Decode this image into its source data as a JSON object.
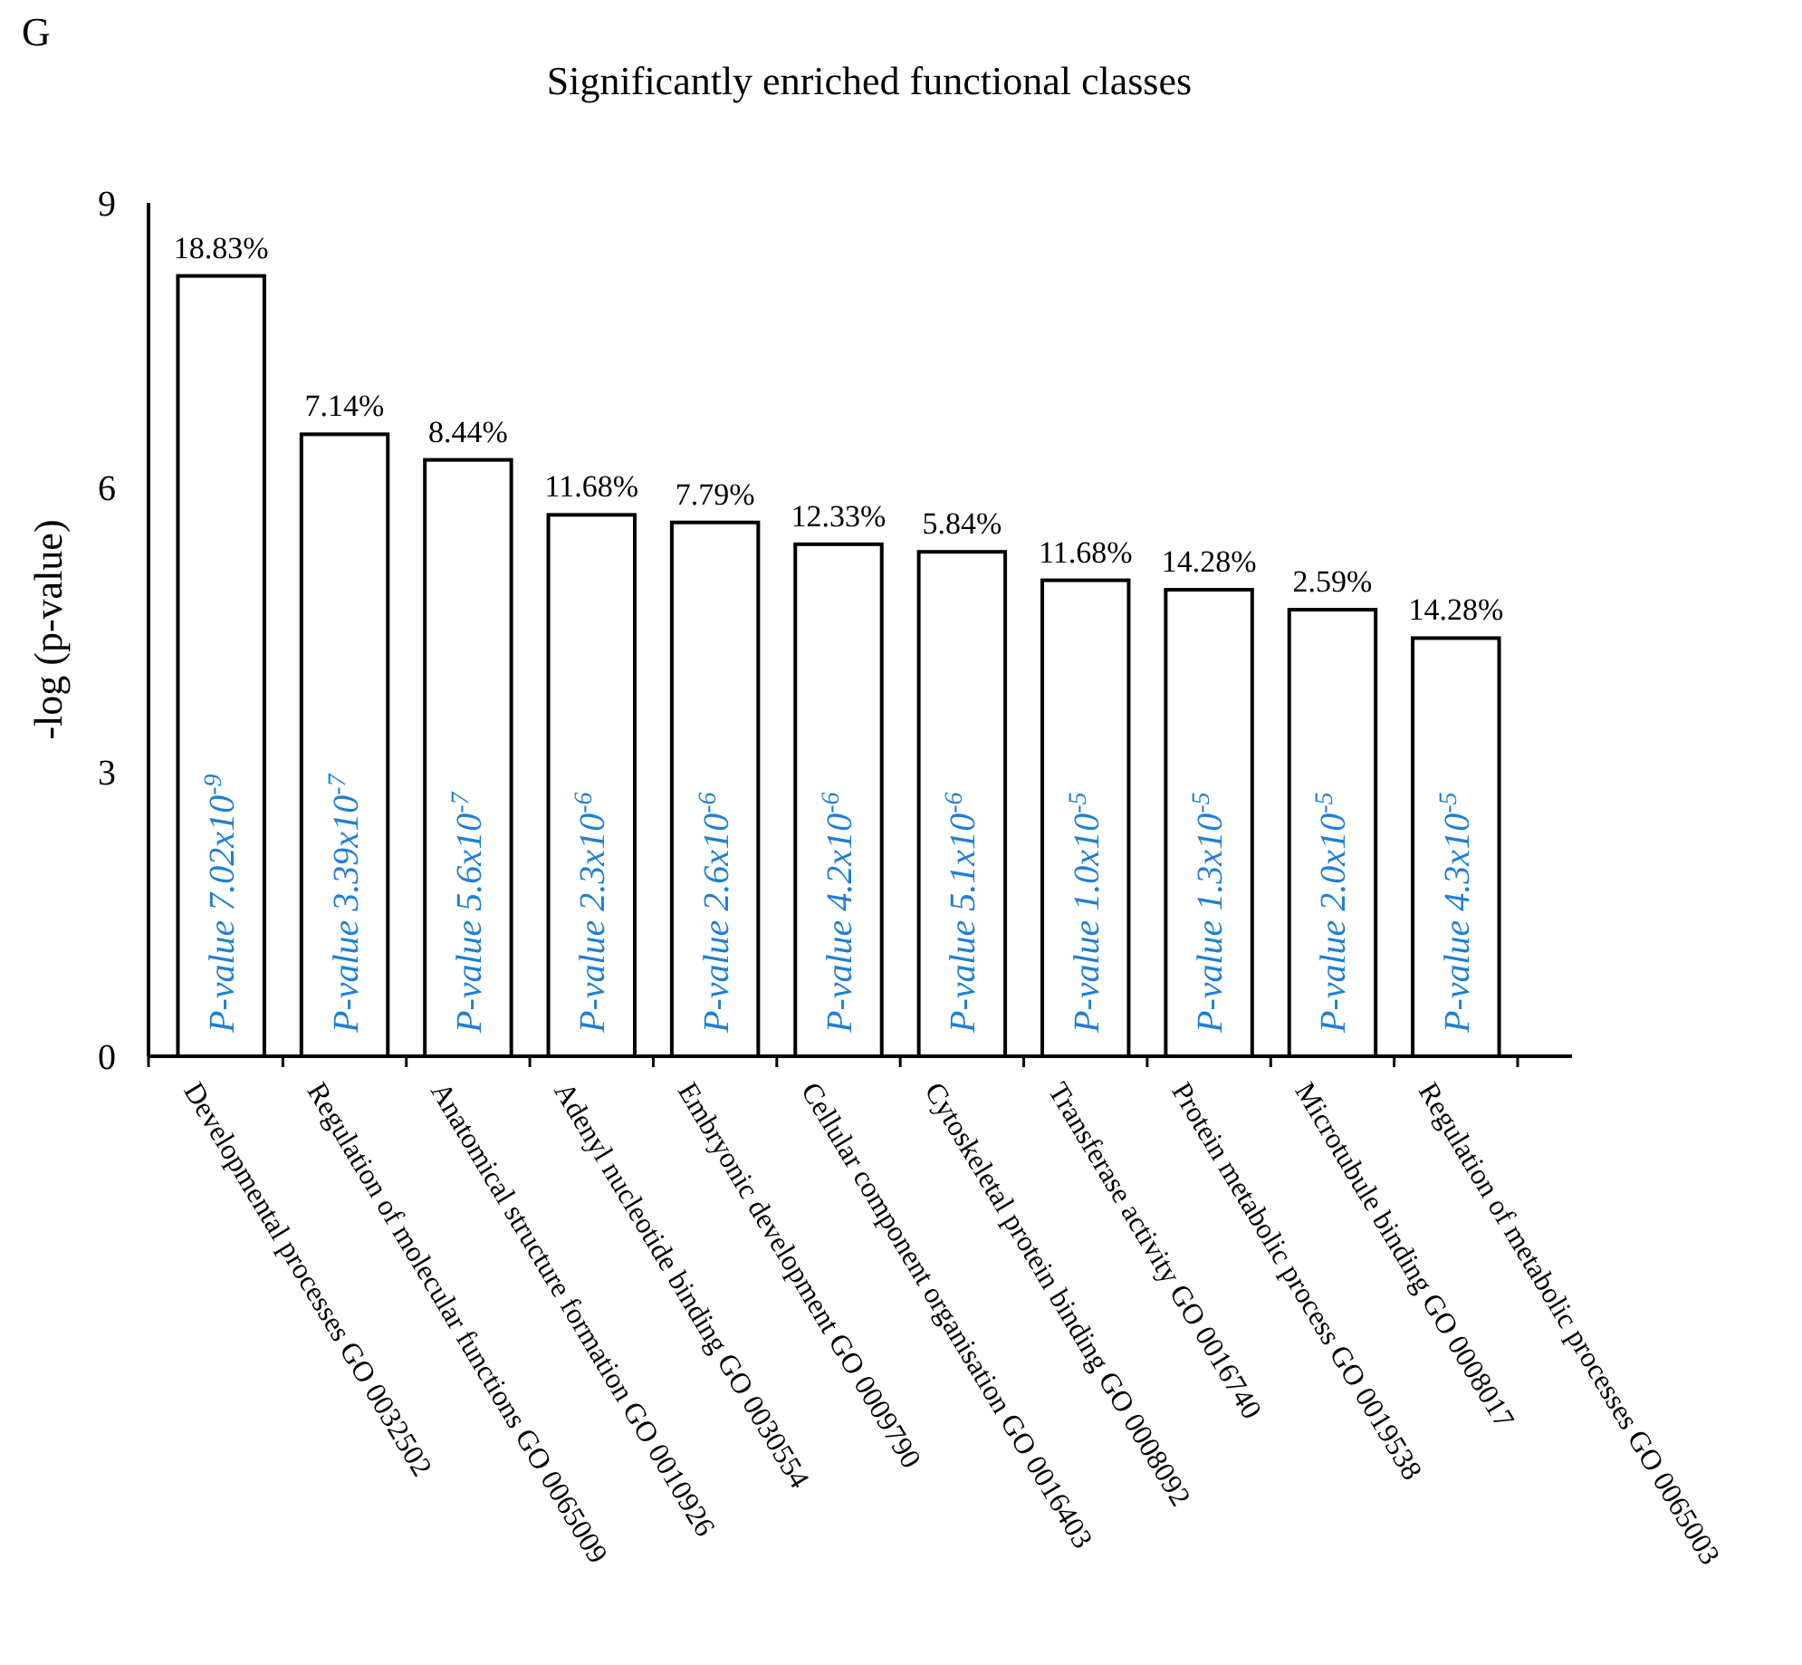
{
  "chart_data": {
    "type": "bar",
    "title": "Significantly enriched functional classes",
    "ylabel": "-log (p-value)",
    "categories": [
      "Developmental processes GO 0032502",
      "Regulation of molecular functions GO 0065009",
      "Anatomical structure formation GO  0010926",
      "Adenyl nucleotide binding GO 0030554",
      "Embryonic development GO 0009790",
      "Cellular component organisation GO 0016403",
      "Cytoskeletal protein binding GO 0008092",
      "Transferase activity GO 0016740",
      "Protein metabolic process GO 0019538",
      "Microtubule binding GO 0008017",
      "Regulation of metabolic processes GO 0065003"
    ],
    "values": [
      8.23,
      6.56,
      6.29,
      5.71,
      5.63,
      5.4,
      5.32,
      5.02,
      4.92,
      4.71,
      4.41
    ],
    "color": "#ffffff",
    "ylim": [
      0,
      9
    ],
    "yticks": [
      0,
      3,
      6,
      9
    ],
    "grid": false,
    "annotations": [
      "G",
      "P-value 7.02x10$^{-9}$",
      "P-value 3.39x10$^{-7}$",
      "P-value 5.6x10$^{-7}$",
      "P-value 2.3x10$^{-6}$",
      "P-value 2.6x10$^{-6}$",
      "P-value 4.2x10$^{-6}$",
      "P-value 5.1x10$^{-6}$",
      "P-value 1.0x10$^{-5}$",
      "P-value 1.3x10$^{-5}$",
      "P-value 2.0x10$^{-5}$",
      "P-value 4.3x10$^{-5}$",
      "18.83%",
      "7.14%",
      "8.44%",
      "11.68%",
      "7.79%",
      "12.33%",
      "5.84%",
      "11.68%",
      "14.28%",
      "2.59%",
      "14.28%"
    ]
  }
}
